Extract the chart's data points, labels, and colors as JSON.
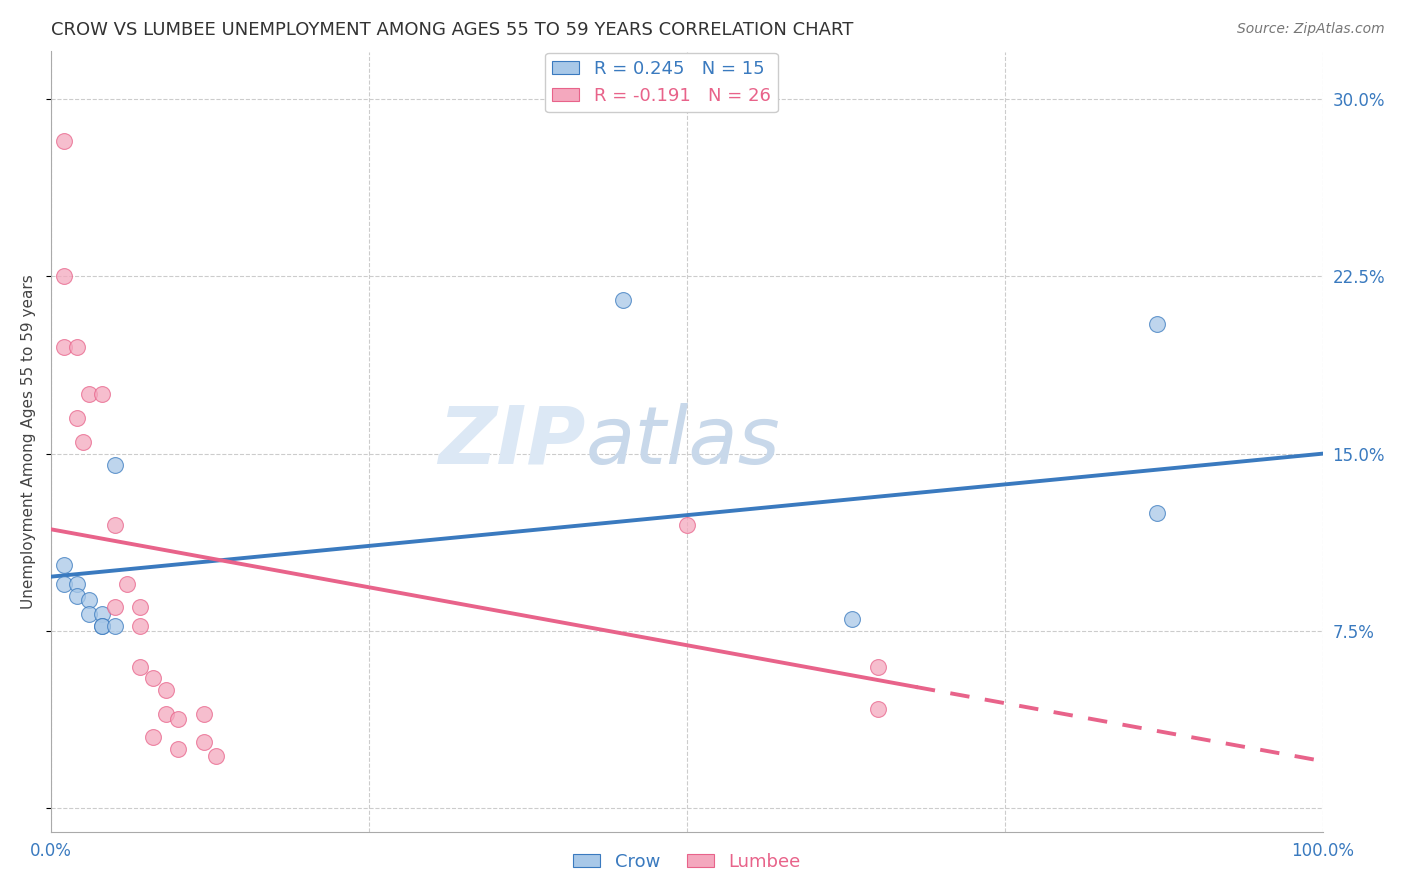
{
  "title": "CROW VS LUMBEE UNEMPLOYMENT AMONG AGES 55 TO 59 YEARS CORRELATION CHART",
  "source": "Source: ZipAtlas.com",
  "ylabel": "Unemployment Among Ages 55 to 59 years",
  "xlim": [
    0.0,
    1.0
  ],
  "ylim": [
    -0.01,
    0.32
  ],
  "xticks": [
    0.0,
    0.25,
    0.5,
    0.75,
    1.0
  ],
  "xticklabels": [
    "0.0%",
    "",
    "",
    "",
    "100.0%"
  ],
  "yticks": [
    0.0,
    0.075,
    0.15,
    0.225,
    0.3
  ],
  "yticklabels_right": [
    "",
    "7.5%",
    "15.0%",
    "22.5%",
    "30.0%"
  ],
  "crow_R": "0.245",
  "crow_N": "15",
  "lumbee_R": "-0.191",
  "lumbee_N": "26",
  "crow_color": "#a8c8e8",
  "lumbee_color": "#f4a8be",
  "crow_line_color": "#3a7abf",
  "lumbee_line_color": "#e8638a",
  "crow_scatter_x": [
    0.01,
    0.01,
    0.02,
    0.02,
    0.03,
    0.03,
    0.04,
    0.04,
    0.04,
    0.45,
    0.87,
    0.87,
    0.63,
    0.05,
    0.05
  ],
  "crow_scatter_y": [
    0.103,
    0.095,
    0.095,
    0.09,
    0.088,
    0.082,
    0.082,
    0.077,
    0.077,
    0.215,
    0.205,
    0.125,
    0.08,
    0.145,
    0.077
  ],
  "lumbee_scatter_x": [
    0.01,
    0.01,
    0.01,
    0.02,
    0.02,
    0.025,
    0.03,
    0.04,
    0.05,
    0.05,
    0.06,
    0.07,
    0.07,
    0.07,
    0.08,
    0.08,
    0.09,
    0.09,
    0.1,
    0.1,
    0.12,
    0.12,
    0.13,
    0.5,
    0.65,
    0.65
  ],
  "lumbee_scatter_y": [
    0.282,
    0.225,
    0.195,
    0.195,
    0.165,
    0.155,
    0.175,
    0.175,
    0.12,
    0.085,
    0.095,
    0.085,
    0.077,
    0.06,
    0.055,
    0.03,
    0.05,
    0.04,
    0.038,
    0.025,
    0.028,
    0.04,
    0.022,
    0.12,
    0.06,
    0.042
  ],
  "crow_line_x": [
    0.0,
    1.0
  ],
  "crow_line_y": [
    0.098,
    0.15
  ],
  "lumbee_line_x": [
    0.0,
    1.0
  ],
  "lumbee_line_y": [
    0.118,
    0.02
  ],
  "lumbee_line_solid_end": 0.68,
  "watermark_zip": "ZIP",
  "watermark_atlas": "atlas",
  "title_fontsize": 13,
  "label_fontsize": 11,
  "tick_fontsize": 12,
  "legend_fontsize": 13,
  "source_fontsize": 10,
  "marker_size": 130,
  "line_width": 2.8
}
